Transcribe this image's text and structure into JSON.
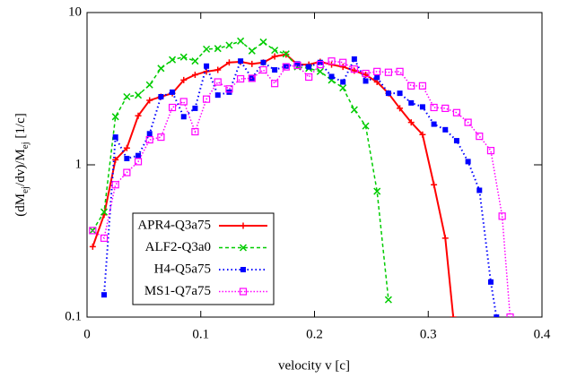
{
  "chart_data": {
    "type": "line",
    "xlabel": "velocity v [c]",
    "ylabel_parts": [
      "(dM",
      "ej",
      "/dv)/M",
      "ej",
      " [1/c]"
    ],
    "xlim": [
      0,
      0.4
    ],
    "ylim": [
      0.1,
      10
    ],
    "log_y": true,
    "xticks": [
      0,
      0.1,
      0.2,
      0.3,
      0.4
    ],
    "yticks": [
      0.1,
      1,
      10
    ],
    "legend": "lower-left",
    "series": [
      {
        "name": "APR4-Q3a75",
        "color": "#ff0000",
        "marker": "plus",
        "dash": "none",
        "width": 2,
        "x": [
          0.005,
          0.015,
          0.025,
          0.035,
          0.045,
          0.055,
          0.065,
          0.075,
          0.085,
          0.095,
          0.105,
          0.115,
          0.125,
          0.135,
          0.145,
          0.155,
          0.165,
          0.175,
          0.185,
          0.195,
          0.205,
          0.215,
          0.225,
          0.235,
          0.245,
          0.255,
          0.265,
          0.275,
          0.285,
          0.295,
          0.305,
          0.315,
          0.322
        ],
        "values": [
          0.29,
          0.47,
          1.08,
          1.29,
          2.1,
          2.65,
          2.8,
          2.95,
          3.6,
          3.9,
          4.1,
          4.2,
          4.7,
          4.75,
          4.6,
          4.7,
          5.15,
          5.3,
          4.55,
          4.55,
          4.75,
          4.55,
          4.4,
          4.15,
          3.9,
          3.5,
          2.95,
          2.35,
          1.9,
          1.58,
          0.74,
          0.33,
          0.1
        ]
      },
      {
        "name": "ALF2-Q3a0",
        "color": "#00cc00",
        "marker": "cross",
        "dash": "4,3",
        "width": 1.5,
        "x": [
          0.005,
          0.015,
          0.025,
          0.035,
          0.045,
          0.055,
          0.065,
          0.075,
          0.085,
          0.095,
          0.105,
          0.115,
          0.125,
          0.135,
          0.145,
          0.155,
          0.165,
          0.175,
          0.185,
          0.195,
          0.205,
          0.215,
          0.225,
          0.235,
          0.245,
          0.255,
          0.265
        ],
        "values": [
          0.37,
          0.49,
          2.07,
          2.8,
          2.87,
          3.35,
          4.3,
          4.9,
          5.1,
          4.8,
          5.75,
          5.8,
          6.1,
          6.5,
          5.6,
          6.4,
          5.65,
          5.35,
          4.4,
          4.3,
          4.1,
          3.6,
          3.2,
          2.3,
          1.8,
          0.67,
          0.13
        ]
      },
      {
        "name": "H4-Q5a75",
        "color": "#0000ff",
        "marker": "filled-square",
        "dash": "1.5,3",
        "width": 2,
        "x": [
          0.015,
          0.025,
          0.035,
          0.045,
          0.055,
          0.065,
          0.075,
          0.085,
          0.095,
          0.105,
          0.115,
          0.125,
          0.135,
          0.145,
          0.155,
          0.165,
          0.175,
          0.185,
          0.195,
          0.205,
          0.215,
          0.225,
          0.235,
          0.245,
          0.255,
          0.265,
          0.275,
          0.285,
          0.295,
          0.305,
          0.315,
          0.325,
          0.335,
          0.345,
          0.355,
          0.36
        ],
        "values": [
          0.14,
          1.52,
          1.1,
          1.15,
          1.6,
          2.8,
          3.0,
          2.07,
          2.35,
          4.45,
          2.87,
          3.0,
          4.8,
          3.7,
          4.7,
          4.2,
          4.45,
          4.6,
          4.4,
          4.7,
          3.8,
          3.5,
          4.95,
          3.55,
          3.75,
          2.95,
          2.95,
          2.55,
          2.4,
          1.85,
          1.7,
          1.44,
          1.05,
          0.68,
          0.17,
          0.1
        ]
      },
      {
        "name": "MS1-Q7a75",
        "color": "#ff00ff",
        "marker": "open-square",
        "dash": "1.5,2",
        "width": 1.5,
        "x": [
          0.005,
          0.015,
          0.025,
          0.035,
          0.045,
          0.055,
          0.065,
          0.075,
          0.085,
          0.095,
          0.105,
          0.115,
          0.125,
          0.135,
          0.145,
          0.155,
          0.165,
          0.175,
          0.185,
          0.195,
          0.205,
          0.215,
          0.225,
          0.235,
          0.245,
          0.255,
          0.265,
          0.275,
          0.285,
          0.295,
          0.305,
          0.315,
          0.325,
          0.335,
          0.345,
          0.355,
          0.365,
          0.372
        ],
        "values": [
          0.37,
          0.33,
          0.74,
          0.89,
          1.05,
          1.46,
          1.52,
          2.38,
          2.6,
          1.65,
          2.7,
          3.5,
          3.15,
          3.67,
          3.7,
          4.2,
          3.42,
          4.4,
          4.5,
          3.77,
          4.55,
          4.8,
          4.7,
          4.25,
          3.98,
          4.1,
          4.05,
          4.1,
          3.3,
          3.3,
          2.38,
          2.35,
          2.2,
          1.9,
          1.54,
          1.24,
          0.46,
          0.1
        ]
      }
    ]
  }
}
